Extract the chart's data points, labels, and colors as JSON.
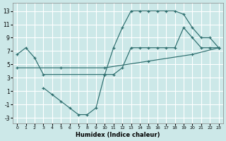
{
  "xlabel": "Humidex (Indice chaleur)",
  "bg_color": "#cce8e8",
  "grid_color": "#ffffff",
  "line_color": "#2d6e6e",
  "xlim": [
    -0.5,
    23.5
  ],
  "ylim": [
    -3.8,
    14.2
  ],
  "xticks": [
    0,
    1,
    2,
    3,
    4,
    5,
    6,
    7,
    8,
    9,
    10,
    11,
    12,
    13,
    14,
    15,
    16,
    17,
    18,
    19,
    20,
    21,
    22,
    23
  ],
  "yticks": [
    -3,
    -1,
    1,
    3,
    5,
    7,
    9,
    11,
    13
  ],
  "line1_x": [
    0,
    1,
    2,
    3,
    10,
    11,
    12,
    13,
    14,
    15,
    16,
    17,
    18,
    19,
    20,
    21,
    22,
    23
  ],
  "line1_y": [
    6.5,
    7.5,
    6.0,
    3.5,
    3.5,
    7.5,
    10.5,
    13,
    13,
    13,
    13,
    13,
    13,
    12.5,
    10.5,
    9.0,
    9.0,
    7.5
  ],
  "line2_x": [
    3,
    4,
    5,
    6,
    7,
    8,
    9,
    10,
    11,
    12,
    13,
    14,
    15,
    16,
    17,
    18,
    19,
    20,
    21,
    22,
    23
  ],
  "line2_y": [
    1.5,
    0.5,
    -0.5,
    -1.5,
    -2.5,
    -2.5,
    -1.5,
    3.5,
    3.5,
    4.5,
    7.5,
    7.5,
    7.5,
    7.5,
    7.5,
    7.5,
    10.5,
    9.0,
    7.5,
    7.5,
    7.5
  ],
  "line3_x": [
    0,
    5,
    10,
    15,
    20,
    23
  ],
  "line3_y": [
    4.5,
    4.5,
    4.5,
    5.5,
    6.5,
    7.5
  ]
}
